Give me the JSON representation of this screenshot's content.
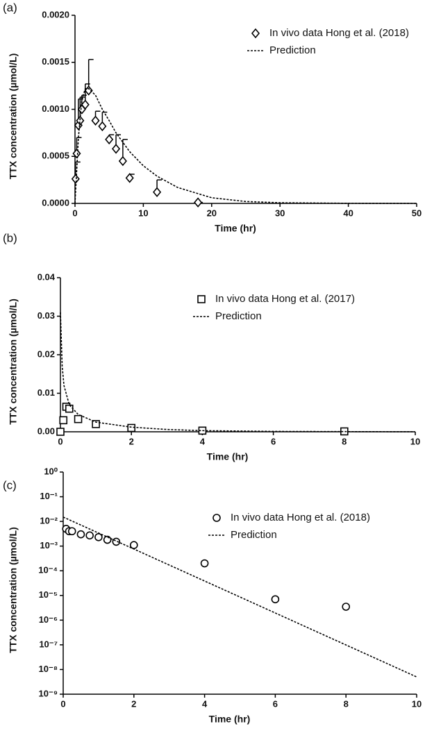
{
  "chart_data": [
    {
      "type": "scatter",
      "panel_label": "(a)",
      "x_label": "Time (hr)",
      "y_label": "TTX concentration (µmol/L)",
      "xlim": [
        0,
        50
      ],
      "xticks": [
        0,
        10,
        20,
        30,
        40,
        50
      ],
      "ylim": [
        0,
        0.002
      ],
      "yticks": [
        {
          "value": 0,
          "label": "0.0000"
        },
        {
          "value": 0.0005,
          "label": "0.0005"
        },
        {
          "value": 0.001,
          "label": "0.0010"
        },
        {
          "value": 0.0015,
          "label": "0.0015"
        },
        {
          "value": 0.002,
          "label": "0.0020"
        }
      ],
      "yscale": "linear",
      "grid": false,
      "legend": "upper right",
      "series": [
        {
          "name": "In vivo data Hong et al. (2018)",
          "color": "#000000",
          "marker": "diamond",
          "x": [
            0.083,
            0.25,
            0.5,
            0.75,
            1,
            1.5,
            2,
            3,
            4,
            5,
            6,
            7,
            8,
            12,
            18
          ],
          "values": [
            0.00026,
            0.00053,
            0.00083,
            0.00088,
            0.001,
            0.00105,
            0.0012,
            0.00088,
            0.00082,
            0.00068,
            0.00058,
            0.00045,
            0.00027,
            0.00012,
            1e-05
          ],
          "errors": [
            0.00018,
            0.00017,
            0.00028,
            0.00025,
            0.00015,
            0.00022,
            0.00033,
            0.0001,
            0.00015,
            5e-05,
            0.00015,
            0.00023,
            4e-05,
            0.00013,
            0
          ]
        },
        {
          "name": "Prediction",
          "color": "#000000",
          "line": "dashed",
          "x": [
            0,
            0.5,
            1,
            1.5,
            2,
            3,
            4,
            5,
            6,
            8,
            10,
            12,
            15,
            20,
            25,
            30,
            40,
            50
          ],
          "values": [
            0,
            0.0007,
            0.0011,
            0.00122,
            0.00122,
            0.00115,
            0.001,
            0.00088,
            0.00075,
            0.00055,
            0.0004,
            0.00029,
            0.00017,
            6e-05,
            2e-05,
            7e-06,
            1e-06,
            0
          ]
        }
      ]
    },
    {
      "type": "scatter",
      "panel_label": "(b)",
      "x_label": "Time (hr)",
      "y_label": "TTX concentration (µmol/L)",
      "xlim": [
        0,
        10
      ],
      "xticks": [
        0,
        2,
        4,
        6,
        8,
        10
      ],
      "ylim": [
        0,
        0.04
      ],
      "yticks": [
        {
          "value": 0,
          "label": "0.00"
        },
        0.01,
        0.02,
        0.03,
        0.04
      ],
      "yscale": "linear",
      "grid": false,
      "legend": "upper right",
      "series": [
        {
          "name": "In vivo data Hong et al. (2017)",
          "color": "#000000",
          "marker": "square",
          "x": [
            0,
            0.083,
            0.167,
            0.25,
            0.5,
            1,
            2,
            4,
            8
          ],
          "values": [
            0,
            0.003,
            0.0065,
            0.006,
            0.0033,
            0.002,
            0.001,
            0.0003,
            0.0001
          ]
        },
        {
          "name": "Prediction",
          "color": "#000000",
          "line": "dashed",
          "x": [
            0,
            0.05,
            0.1,
            0.25,
            0.5,
            1,
            2,
            3,
            4,
            6,
            10
          ],
          "values": [
            0.031,
            0.017,
            0.012,
            0.007,
            0.0045,
            0.0025,
            0.0012,
            0.0006,
            0.0003,
            0.0001,
            0
          ]
        }
      ]
    },
    {
      "type": "scatter",
      "panel_label": "(c)",
      "x_label": "Time (hr)",
      "y_label": "TTX concentration (µmol/L)",
      "xlim": [
        0,
        10
      ],
      "xticks": [
        0,
        2,
        4,
        6,
        8,
        10
      ],
      "ylim": [
        1e-09,
        1
      ],
      "yticks": [
        {
          "value": 1,
          "label": "10⁰"
        },
        {
          "value": 0.1,
          "label": "10⁻¹"
        },
        {
          "value": 0.01,
          "label": "10⁻²"
        },
        {
          "value": 0.001,
          "label": "10⁻³"
        },
        {
          "value": 0.0001,
          "label": "10⁻⁴"
        },
        {
          "value": 1e-05,
          "label": "10⁻⁵"
        },
        {
          "value": 1e-06,
          "label": "10⁻⁶"
        },
        {
          "value": 1e-07,
          "label": "10⁻⁷"
        },
        {
          "value": 1e-08,
          "label": "10⁻⁸"
        },
        {
          "value": 1e-09,
          "label": "10⁻⁹"
        }
      ],
      "yscale": "log",
      "grid": false,
      "legend": "upper right",
      "series": [
        {
          "name": "In vivo data Hong et al. (2018)",
          "color": "#000000",
          "marker": "circle",
          "x": [
            0.083,
            0.167,
            0.25,
            0.5,
            0.75,
            1,
            1.25,
            1.5,
            2,
            4,
            6,
            8
          ],
          "values": [
            0.005,
            0.004,
            0.004,
            0.003,
            0.0027,
            0.0023,
            0.0018,
            0.0015,
            0.0011,
            0.0002,
            7e-06,
            3.5e-06
          ]
        },
        {
          "name": "Prediction",
          "color": "#000000",
          "line": "dashed",
          "x": [
            0,
            10
          ],
          "values": [
            0.015,
            5e-09
          ]
        }
      ]
    }
  ]
}
